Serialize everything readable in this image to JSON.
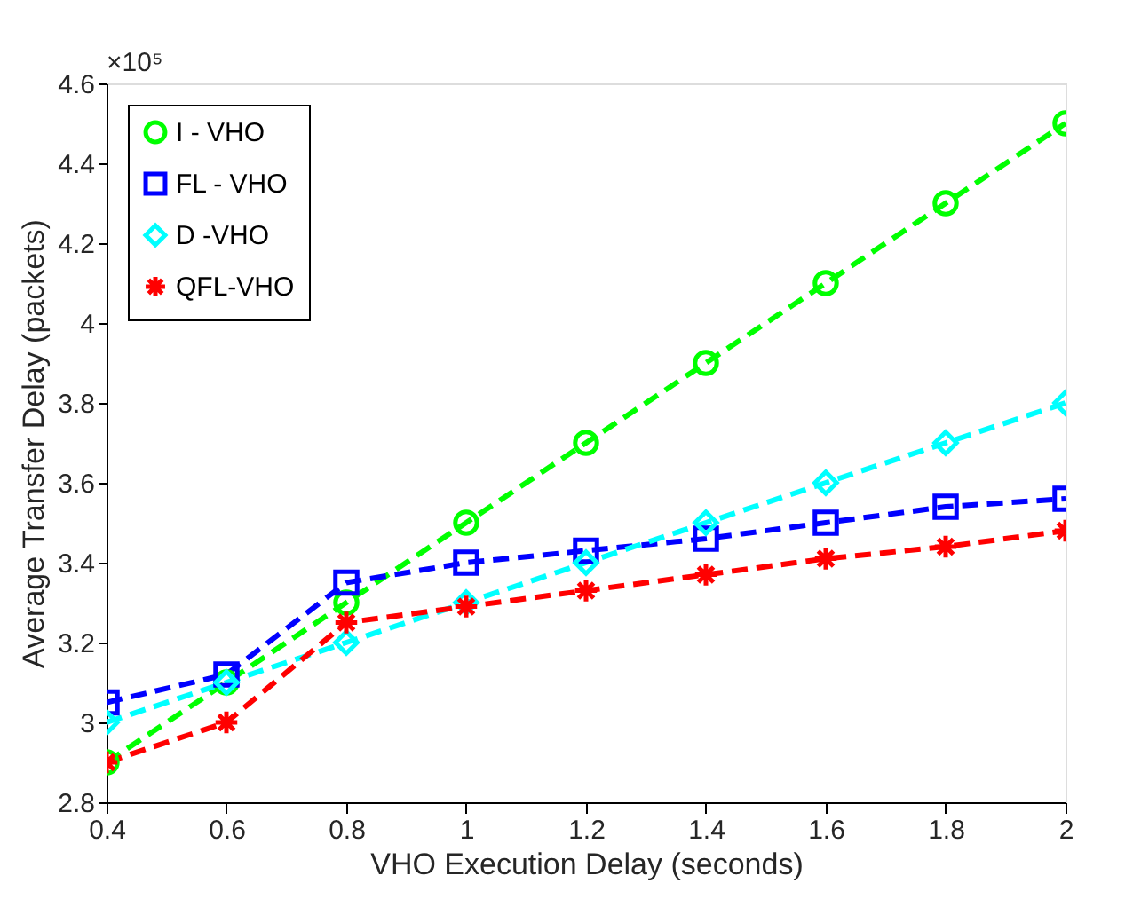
{
  "chart_data": {
    "type": "line",
    "xlabel": "VHO Execution Delay (seconds)",
    "ylabel": "Average Transfer Delay (packets)",
    "annotations": [
      "×10⁵"
    ],
    "x": [
      0.4,
      0.6,
      0.8,
      1,
      1.2,
      1.4,
      1.6,
      1.8,
      2
    ],
    "xlim": [
      0.4,
      2
    ],
    "xticks": [
      0.4,
      0.6,
      0.8,
      1,
      1.2,
      1.4,
      1.6,
      1.8,
      2
    ],
    "ylim": [
      2.8,
      4.6
    ],
    "yticks": [
      2.8,
      3,
      3.2,
      3.4,
      3.6,
      3.8,
      4,
      4.2,
      4.4,
      4.6
    ],
    "grid": false,
    "legend": "top left",
    "line_style": "dashed",
    "series": [
      {
        "name": "I - VHO",
        "color": "#00ff00",
        "marker": "circle",
        "values": [
          2.9,
          3.1,
          3.3,
          3.5,
          3.7,
          3.9,
          4.1,
          4.3,
          4.5
        ]
      },
      {
        "name": "FL - VHO",
        "color": "#0000ff",
        "marker": "square",
        "values": [
          3.05,
          3.12,
          3.35,
          3.4,
          3.43,
          3.46,
          3.5,
          3.54,
          3.56
        ]
      },
      {
        "name": " D -VHO",
        "color": "#00ffff",
        "marker": "diamond",
        "values": [
          3.0,
          3.1,
          3.2,
          3.3,
          3.4,
          3.5,
          3.6,
          3.7,
          3.8
        ]
      },
      {
        "name": "QFL-VHO",
        "color": "#ff0000",
        "marker": "cross",
        "values": [
          2.9,
          3.0,
          3.25,
          3.29,
          3.33,
          3.37,
          3.41,
          3.44,
          3.48
        ]
      }
    ]
  }
}
